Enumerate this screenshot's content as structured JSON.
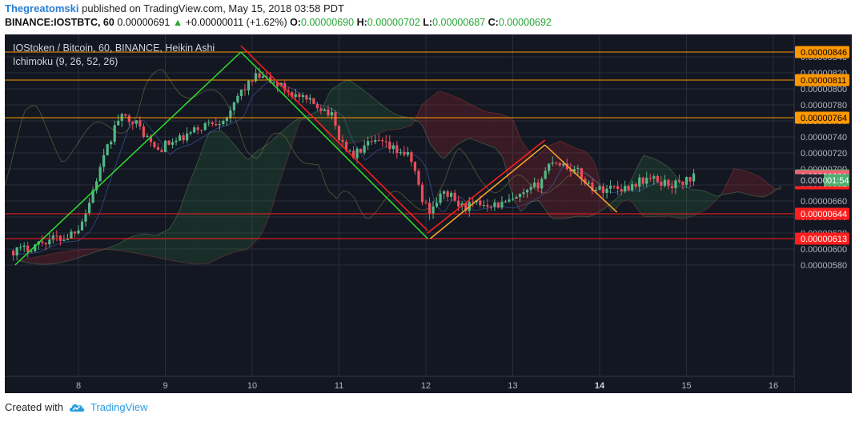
{
  "header": {
    "author": "Thegreatomski",
    "published": "published on TradingView.com, May 15, 2018 03:58 PDT",
    "symbol": "BINANCE:IOSTBTC, 60",
    "last": "0.00000691",
    "change": "+0.00000011 (+1.62%)",
    "open_label": "O:",
    "open": "0.00000690",
    "high_label": "H:",
    "high": "0.00000702",
    "low_label": "L:",
    "low": "0.00000687",
    "close_label": "C:",
    "close": "0.00000692"
  },
  "footer": {
    "created_with": "Created with",
    "brand": "TradingView"
  },
  "chart_data": {
    "type": "candlestick",
    "title": "IOStoken / Bitcoin, 60, BINANCE, Heikin Ashi",
    "indicator": "Ichimoku (9, 26, 52, 26)",
    "x_ticks": [
      {
        "label": "8",
        "day": 8
      },
      {
        "label": "9",
        "day": 9
      },
      {
        "label": "10",
        "day": 10
      },
      {
        "label": "11",
        "day": 11
      },
      {
        "label": "12",
        "day": 12
      },
      {
        "label": "13",
        "day": 13
      },
      {
        "label": "14",
        "day": 14,
        "bold": true
      },
      {
        "label": "15",
        "day": 15
      },
      {
        "label": "16",
        "day": 16
      }
    ],
    "xlim": [
      7.2,
      16.3
    ],
    "ylim": [
      5.7e-06,
      8.6e-06
    ],
    "y_ticks": [
      "0.00000580",
      "0.00000600",
      "0.00000620",
      "0.00000640",
      "0.00000660",
      "0.00000680",
      "0.00000700",
      "0.00000720",
      "0.00000740",
      "0.00000760",
      "0.00000780",
      "0.00000800",
      "0.00000820",
      "0.00000840"
    ],
    "price_path": [
      [
        7.25,
        5.98
      ],
      [
        7.4,
        6.0
      ],
      [
        7.55,
        6.08
      ],
      [
        7.7,
        6.13
      ],
      [
        7.85,
        6.14
      ],
      [
        8.0,
        6.28
      ],
      [
        8.1,
        6.5
      ],
      [
        8.2,
        6.85
      ],
      [
        8.3,
        7.15
      ],
      [
        8.45,
        7.62
      ],
      [
        8.6,
        7.65
      ],
      [
        8.75,
        7.45
      ],
      [
        8.9,
        7.22
      ],
      [
        9.0,
        7.3
      ],
      [
        9.15,
        7.35
      ],
      [
        9.3,
        7.45
      ],
      [
        9.45,
        7.55
      ],
      [
        9.6,
        7.6
      ],
      [
        9.75,
        7.68
      ],
      [
        9.85,
        7.95
      ],
      [
        9.95,
        8.05
      ],
      [
        10.05,
        8.15
      ],
      [
        10.15,
        8.12
      ],
      [
        10.3,
        8.05
      ],
      [
        10.45,
        7.95
      ],
      [
        10.6,
        7.85
      ],
      [
        10.75,
        7.8
      ],
      [
        10.9,
        7.7
      ],
      [
        11.0,
        7.4
      ],
      [
        11.15,
        7.15
      ],
      [
        11.3,
        7.28
      ],
      [
        11.45,
        7.33
      ],
      [
        11.6,
        7.25
      ],
      [
        11.75,
        7.2
      ],
      [
        11.85,
        7.08
      ],
      [
        11.95,
        6.62
      ],
      [
        12.05,
        6.48
      ],
      [
        12.15,
        6.65
      ],
      [
        12.25,
        6.7
      ],
      [
        12.4,
        6.52
      ],
      [
        12.55,
        6.55
      ],
      [
        12.7,
        6.58
      ],
      [
        12.85,
        6.55
      ],
      [
        13.0,
        6.6
      ],
      [
        13.15,
        6.68
      ],
      [
        13.3,
        6.82
      ],
      [
        13.45,
        7.12
      ],
      [
        13.6,
        7.05
      ],
      [
        13.75,
        6.95
      ],
      [
        13.9,
        6.78
      ],
      [
        14.0,
        6.74
      ],
      [
        14.15,
        6.78
      ],
      [
        14.3,
        6.76
      ],
      [
        14.4,
        6.82
      ],
      [
        14.55,
        6.88
      ],
      [
        14.7,
        6.84
      ],
      [
        14.85,
        6.8
      ],
      [
        15.0,
        6.86
      ],
      [
        15.1,
        6.92
      ]
    ],
    "horizontal_levels": [
      {
        "value": "0.00000846",
        "color": "#ff9800"
      },
      {
        "value": "0.00000811",
        "color": "#ff9800"
      },
      {
        "value": "0.00000764",
        "color": "#ff9800"
      },
      {
        "value": "0.00000644",
        "color": "#ff1e1e"
      },
      {
        "value": "0.00000613",
        "color": "#ff1e1e"
      }
    ],
    "price_tags": [
      {
        "value": "0.00000846",
        "color": "#ff9800",
        "text_color": "#000000"
      },
      {
        "value": "0.00000811",
        "color": "#ff9800",
        "text_color": "#000000"
      },
      {
        "value": "0.00000764",
        "color": "#ff9800",
        "text_color": "#000000"
      },
      {
        "value": "0.00000692",
        "color": "#4caf70",
        "text_color": "#ffffff"
      },
      {
        "value": "0.00000691",
        "color": "#f06070",
        "text_color": "#ffffff"
      },
      {
        "value": "0.00000682",
        "color": "#ff1e1e",
        "text_color": "#ffffff"
      },
      {
        "value": "0.00000644",
        "color": "#ff1e1e",
        "text_color": "#ffffff"
      },
      {
        "value": "0.00000613",
        "color": "#ff1e1e",
        "text_color": "#ffffff"
      }
    ],
    "countdown_tag": {
      "price": "0.0000",
      "timer": "01:54",
      "value": "0.00000686"
    },
    "trend_lines": [
      {
        "color": "#30e030",
        "from": [
          7.27,
          5.8
        ],
        "to": [
          9.87,
          8.46
        ]
      },
      {
        "color": "#ff2020",
        "from": [
          9.87,
          8.54
        ],
        "to": [
          12.02,
          6.23
        ]
      },
      {
        "color": "#30e030",
        "from": [
          9.87,
          8.46
        ],
        "to": [
          12.02,
          6.13
        ]
      },
      {
        "color": "#ff2020",
        "from": [
          12.02,
          6.2
        ],
        "to": [
          13.37,
          7.36
        ]
      },
      {
        "color": "#ffa726",
        "from": [
          12.05,
          6.13
        ],
        "to": [
          13.37,
          7.3
        ]
      },
      {
        "color": "#ffa726",
        "from": [
          13.37,
          7.3
        ],
        "to": [
          14.2,
          6.46
        ]
      }
    ],
    "colors": {
      "background": "#131722",
      "up": "#53b987",
      "down": "#eb4d5c",
      "grid": "#2a2e39",
      "axis_text": "#b2b5be"
    }
  }
}
